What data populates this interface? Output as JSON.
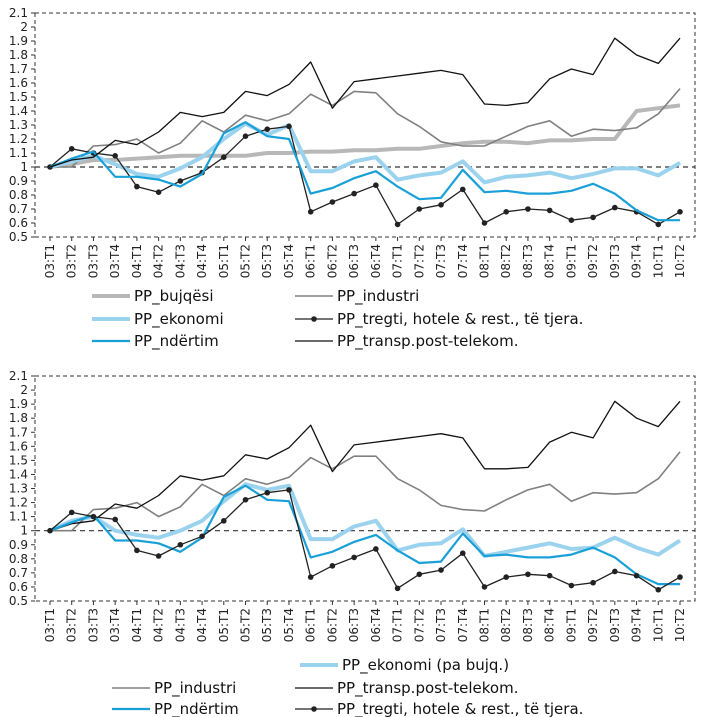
{
  "chart_data": [
    {
      "type": "line",
      "categories": [
        "03:T1",
        "03:T2",
        "03:T3",
        "03:T4",
        "04:T1",
        "04:T2",
        "04:T3",
        "04:T4",
        "05:T1",
        "05:T2",
        "05:T3",
        "05:T4",
        "06:T1",
        "06:T2",
        "06:T3",
        "06:T4",
        "07:T1",
        "07:T2",
        "07:T3",
        "07:T4",
        "08:T1",
        "08:T2",
        "08:T3",
        "08:T4",
        "09:T1",
        "09:T2",
        "09:T3",
        "09:T4",
        "10:T1",
        "10:T2"
      ],
      "yticks": [
        "0.5",
        "0.6",
        "0.7",
        "0.8",
        "0.9",
        "1",
        "1.1",
        "1.2",
        "1.3",
        "1.4",
        "1.5",
        "1.6",
        "1.7",
        "1.8",
        "1.9",
        "2",
        "2.1"
      ],
      "ylim": [
        0.5,
        2.1
      ],
      "reference_line": 1,
      "series": [
        {
          "name": "PP_bujqësi",
          "color": "#b8b8b8",
          "width": 4,
          "marker": false,
          "values": [
            1.0,
            1.02,
            1.05,
            1.05,
            1.06,
            1.07,
            1.08,
            1.08,
            1.08,
            1.08,
            1.1,
            1.1,
            1.11,
            1.11,
            1.12,
            1.12,
            1.13,
            1.13,
            1.15,
            1.17,
            1.18,
            1.18,
            1.17,
            1.19,
            1.19,
            1.2,
            1.2,
            1.4,
            1.42,
            1.44
          ]
        },
        {
          "name": "PP_industri",
          "color": "#808080",
          "width": 1.6,
          "marker": false,
          "values": [
            1.0,
            1.0,
            1.15,
            1.16,
            1.2,
            1.1,
            1.17,
            1.33,
            1.25,
            1.37,
            1.33,
            1.38,
            1.52,
            1.44,
            1.54,
            1.53,
            1.38,
            1.29,
            1.18,
            1.15,
            1.15,
            1.22,
            1.29,
            1.33,
            1.22,
            1.27,
            1.26,
            1.28,
            1.38,
            1.56
          ]
        },
        {
          "name": "PP_ekonomi",
          "color": "#9bd3ee",
          "width": 4,
          "marker": false,
          "values": [
            1.0,
            1.04,
            1.08,
            1.02,
            0.95,
            0.93,
            0.99,
            1.07,
            1.2,
            1.31,
            1.23,
            1.3,
            0.97,
            0.97,
            1.04,
            1.07,
            0.91,
            0.94,
            0.96,
            1.04,
            0.89,
            0.93,
            0.94,
            0.96,
            0.92,
            0.95,
            0.99,
            0.99,
            0.94,
            1.03
          ]
        },
        {
          "name": "PP_tregti, hotele & rest., të tjera.",
          "color": "#222222",
          "width": 1.3,
          "marker": true,
          "values": [
            1.0,
            1.13,
            1.1,
            1.08,
            0.86,
            0.82,
            0.9,
            0.96,
            1.07,
            1.22,
            1.27,
            1.29,
            0.68,
            0.75,
            0.81,
            0.87,
            0.59,
            0.7,
            0.73,
            0.84,
            0.6,
            0.68,
            0.7,
            0.69,
            0.62,
            0.64,
            0.71,
            0.68,
            0.59,
            0.68
          ]
        },
        {
          "name": "PP_ndërtim",
          "color": "#1aa0d8",
          "width": 2.2,
          "marker": false,
          "values": [
            1.0,
            1.06,
            1.11,
            0.93,
            0.93,
            0.91,
            0.86,
            0.95,
            1.24,
            1.32,
            1.22,
            1.2,
            0.81,
            0.85,
            0.92,
            0.97,
            0.86,
            0.77,
            0.78,
            0.98,
            0.82,
            0.83,
            0.81,
            0.81,
            0.83,
            0.88,
            0.81,
            0.69,
            0.62,
            0.62
          ]
        },
        {
          "name": "PP_transp.post-telekom.",
          "color": "#111111",
          "width": 1.3,
          "marker": false,
          "values": [
            1.0,
            1.05,
            1.07,
            1.19,
            1.16,
            1.25,
            1.39,
            1.36,
            1.39,
            1.54,
            1.51,
            1.59,
            1.75,
            1.42,
            1.61,
            1.63,
            1.65,
            1.67,
            1.69,
            1.66,
            1.45,
            1.44,
            1.46,
            1.63,
            1.7,
            1.66,
            1.92,
            1.8,
            1.74,
            1.92
          ]
        }
      ],
      "legend": [
        [
          "PP_bujqësi",
          "PP_industri"
        ],
        [
          "PP_ekonomi",
          "PP_tregti, hotele & rest., të tjera."
        ],
        [
          "PP_ndërtim",
          "PP_transp.post-telekom."
        ]
      ]
    },
    {
      "type": "line",
      "categories": [
        "03:T1",
        "03:T2",
        "03:T3",
        "03:T4",
        "04:T1",
        "04:T2",
        "04:T3",
        "04:T4",
        "05:T1",
        "05:T2",
        "05:T3",
        "05:T4",
        "06:T1",
        "06:T2",
        "06:T3",
        "06:T4",
        "07:T1",
        "07:T2",
        "07:T3",
        "07:T4",
        "08:T1",
        "08:T2",
        "08:T3",
        "08:T4",
        "09:T1",
        "09:T2",
        "09:T3",
        "09:T4",
        "10:T1",
        "10:T2"
      ],
      "yticks": [
        "0.5",
        "0.6",
        "0.7",
        "0.8",
        "0.9",
        "1",
        "1.1",
        "1.2",
        "1.3",
        "1.4",
        "1.5",
        "1.6",
        "1.7",
        "1.8",
        "1.9",
        "2",
        "2.1"
      ],
      "ylim": [
        0.5,
        2.1
      ],
      "reference_line": 1,
      "series": [
        {
          "name": "PP_ekonomi (pa bujq.)",
          "color": "#9bd3ee",
          "width": 4,
          "marker": false,
          "values": [
            1.0,
            1.07,
            1.1,
            1.0,
            0.97,
            0.95,
            1.0,
            1.07,
            1.21,
            1.33,
            1.29,
            1.32,
            0.94,
            0.94,
            1.03,
            1.07,
            0.86,
            0.9,
            0.91,
            1.01,
            0.82,
            0.85,
            0.88,
            0.91,
            0.87,
            0.88,
            0.95,
            0.88,
            0.83,
            0.93
          ]
        },
        {
          "name": "PP_industri",
          "color": "#808080",
          "width": 1.6,
          "marker": false,
          "values": [
            1.0,
            1.0,
            1.15,
            1.16,
            1.2,
            1.1,
            1.17,
            1.33,
            1.25,
            1.37,
            1.33,
            1.38,
            1.52,
            1.44,
            1.53,
            1.53,
            1.37,
            1.29,
            1.18,
            1.15,
            1.14,
            1.22,
            1.29,
            1.33,
            1.21,
            1.27,
            1.26,
            1.27,
            1.37,
            1.56
          ]
        },
        {
          "name": "PP_transp.post-telekom.",
          "color": "#111111",
          "width": 1.3,
          "marker": false,
          "values": [
            1.0,
            1.05,
            1.07,
            1.19,
            1.16,
            1.25,
            1.39,
            1.36,
            1.39,
            1.54,
            1.51,
            1.59,
            1.75,
            1.42,
            1.61,
            1.63,
            1.65,
            1.67,
            1.69,
            1.66,
            1.44,
            1.44,
            1.45,
            1.63,
            1.7,
            1.66,
            1.92,
            1.8,
            1.74,
            1.92
          ]
        },
        {
          "name": "PP_ndërtim",
          "color": "#1aa0d8",
          "width": 2.2,
          "marker": false,
          "values": [
            1.0,
            1.06,
            1.11,
            0.93,
            0.93,
            0.91,
            0.85,
            0.95,
            1.24,
            1.32,
            1.22,
            1.21,
            0.81,
            0.85,
            0.92,
            0.97,
            0.86,
            0.77,
            0.78,
            0.98,
            0.82,
            0.83,
            0.81,
            0.81,
            0.83,
            0.88,
            0.81,
            0.69,
            0.62,
            0.62
          ]
        },
        {
          "name": "PP_tregti, hotele & rest., të tjera.",
          "color": "#222222",
          "width": 1.3,
          "marker": true,
          "values": [
            1.0,
            1.13,
            1.1,
            1.08,
            0.86,
            0.82,
            0.9,
            0.96,
            1.07,
            1.22,
            1.27,
            1.29,
            0.67,
            0.75,
            0.81,
            0.87,
            0.59,
            0.69,
            0.72,
            0.84,
            0.6,
            0.67,
            0.69,
            0.68,
            0.61,
            0.63,
            0.71,
            0.68,
            0.58,
            0.67
          ]
        }
      ],
      "legend": [
        [
          "PP_ekonomi (pa bujq.)"
        ],
        [
          "PP_industri",
          "PP_transp.post-telekom."
        ],
        [
          "PP_ndërtim",
          "PP_tregti, hotele & rest., të tjera."
        ]
      ]
    }
  ]
}
